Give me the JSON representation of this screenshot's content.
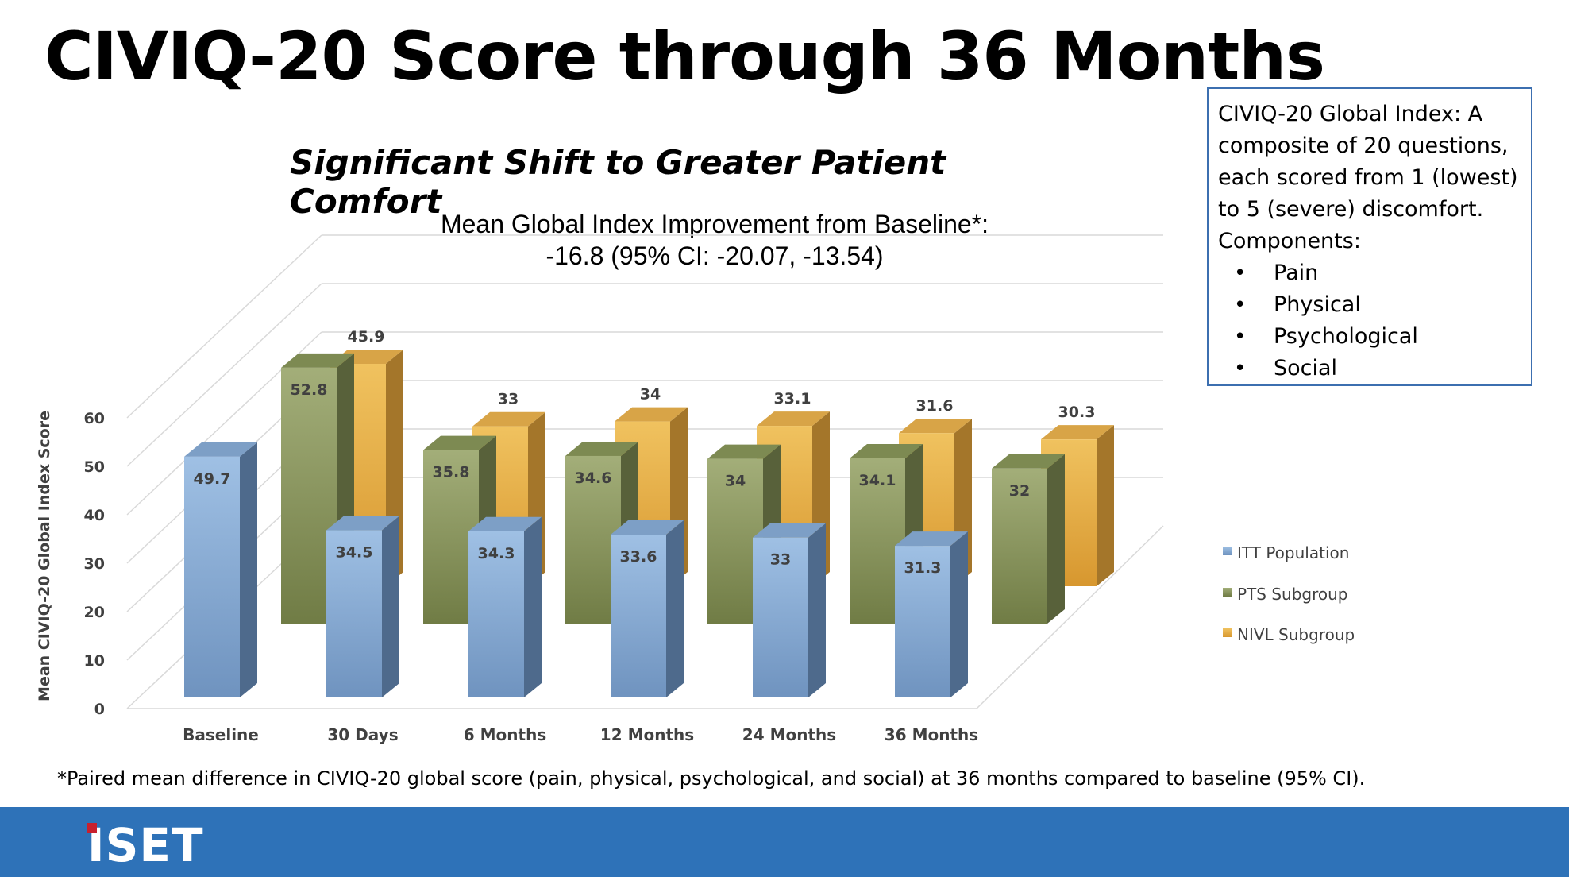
{
  "slide": {
    "title": "CIVIQ-20 Score through 36 Months",
    "subtitle": "Significant Shift to Greater Patient Comfort",
    "footnote": "*Paired mean difference in CIVIQ-20 global score (pain, physical, psychological, and social) at 36 months compared to baseline (95% CI).",
    "logo_text": "ISET"
  },
  "info_box": {
    "text": "CIVIQ-20 Global Index: A composite of 20 questions, each scored from 1 (lowest) to 5 (severe) discomfort. Components:",
    "components": [
      "Pain",
      "Physical",
      "Psychological",
      "Social"
    ]
  },
  "colors": {
    "itt": "#8eb0d6",
    "pts": "#8c9a5f",
    "nivl": "#e2ad44",
    "footer": "#2e72b8"
  },
  "chart_data": {
    "type": "bar",
    "title_line1": "Mean Global Index Improvement from Baseline*:",
    "title_line2": "-16.8 (95% CI: -20.07, -13.54)",
    "ylabel": "Mean CIVIQ-20 Global Index Score",
    "ylim": [
      0,
      60
    ],
    "yticks": [
      0,
      10,
      20,
      30,
      40,
      50,
      60
    ],
    "categories": [
      "Baseline",
      "30 Days",
      "6 Months",
      "12 Months",
      "24 Months",
      "36 Months"
    ],
    "legend_position": "right",
    "series": [
      {
        "name": "ITT Population",
        "values": [
          49.7,
          34.5,
          34.3,
          33.6,
          33,
          31.3
        ]
      },
      {
        "name": "PTS Subgroup",
        "values": [
          52.8,
          35.8,
          34.6,
          34,
          34.1,
          32
        ]
      },
      {
        "name": "NIVL Subgroup",
        "values": [
          45.9,
          33,
          34,
          33.1,
          31.6,
          30.3
        ]
      }
    ]
  }
}
